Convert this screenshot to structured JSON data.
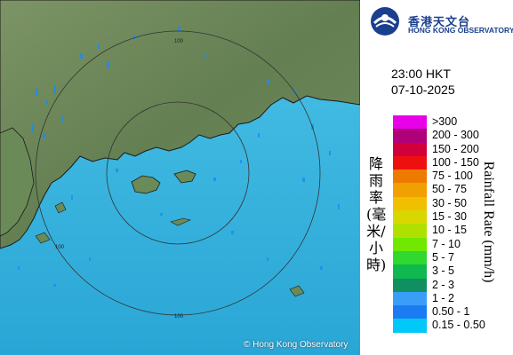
{
  "map": {
    "copyright": "© Hong Kong Observatory",
    "range_label": "100",
    "colors": {
      "sea": "#3ab4e0",
      "land": "#6a8a58",
      "coast": "#1a1a1a",
      "ring": "#333333"
    }
  },
  "header": {
    "logo_cn": "香港天文台",
    "logo_en": "HONG KONG OBSERVATORY",
    "logo_color": "#1a3f8f"
  },
  "timestamp": {
    "time": "23:00 HKT",
    "date": "07-10-2025"
  },
  "legend": {
    "title_cn": "降雨率(毫米/小時)",
    "title_en": "Rainfall Rate (mm/h)",
    "items": [
      {
        "label": ">300",
        "color": "#e800e8"
      },
      {
        "label": "200 - 300",
        "color": "#b0007a"
      },
      {
        "label": "150 - 200",
        "color": "#d2003a"
      },
      {
        "label": "100 - 150",
        "color": "#ee1010"
      },
      {
        "label": "75 - 100",
        "color": "#ee7a00"
      },
      {
        "label": "50 - 75",
        "color": "#f0a000"
      },
      {
        "label": "30 - 50",
        "color": "#f0c000"
      },
      {
        "label": "15 - 30",
        "color": "#d8d800"
      },
      {
        "label": "10 - 15",
        "color": "#b0e000"
      },
      {
        "label": "7 - 10",
        "color": "#70e800"
      },
      {
        "label": "5 - 7",
        "color": "#30d830"
      },
      {
        "label": "3 - 5",
        "color": "#10b850"
      },
      {
        "label": "2 - 3",
        "color": "#109060"
      },
      {
        "label": "1 - 2",
        "color": "#3a9ef8"
      },
      {
        "label": "0.50 - 1",
        "color": "#1a7cf0"
      },
      {
        "label": "0.15 - 0.50",
        "color": "#00c8f8"
      }
    ]
  }
}
